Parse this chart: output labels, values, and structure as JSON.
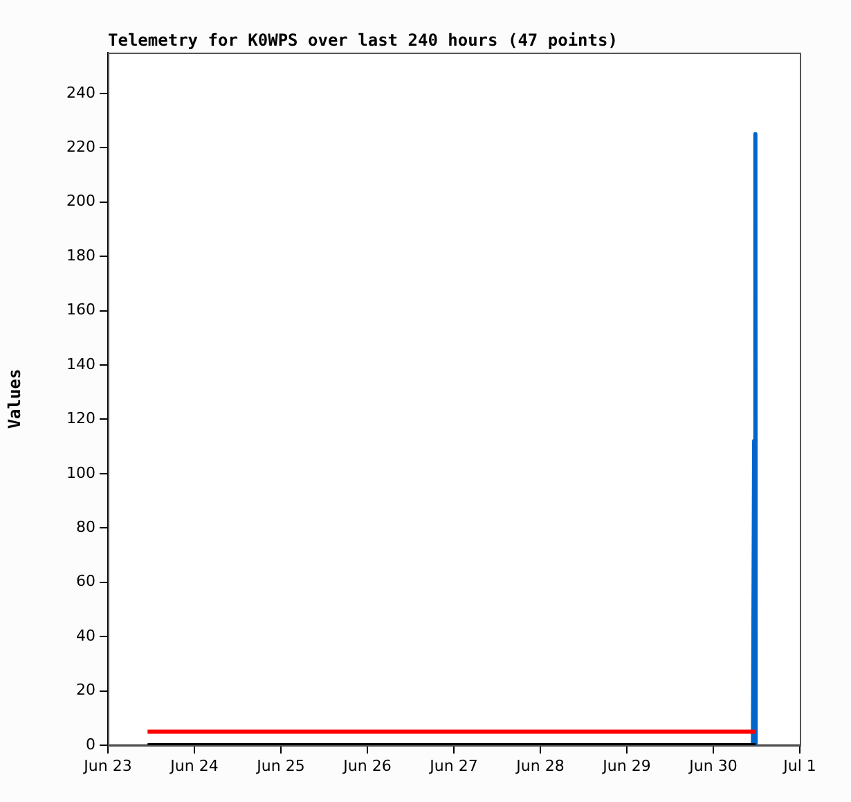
{
  "chart_data": {
    "type": "line",
    "title": "Telemetry for K0WPS over last 240 hours (47 points)",
    "ylabel": "Values",
    "xlim": [
      "--06-23",
      "--07-01"
    ],
    "xticks": [
      {
        "value": "--06-23",
        "label": "Jun 23"
      },
      {
        "value": "--06-24",
        "label": "Jun 24"
      },
      {
        "value": "--06-25",
        "label": "Jun 25"
      },
      {
        "value": "--06-26",
        "label": "Jun 26"
      },
      {
        "value": "--06-27",
        "label": "Jun 27"
      },
      {
        "value": "--06-28",
        "label": "Jun 28"
      },
      {
        "value": "--06-29",
        "label": "Jun 29"
      },
      {
        "value": "--06-30",
        "label": "Jun 30"
      },
      {
        "value": "--07-01",
        "label": "Jul 1"
      }
    ],
    "ylim": [
      0,
      255
    ],
    "yticks": [
      0,
      20,
      40,
      60,
      80,
      100,
      120,
      140,
      160,
      180,
      200,
      220,
      240
    ],
    "series": [
      {
        "color": "#000000",
        "x": [
          "--06-23T11:00",
          "--06-30T11:45"
        ],
        "values": [
          0,
          0
        ]
      },
      {
        "color": "#ff0000",
        "x": [
          "--06-23T11:00",
          "--06-30T11:45"
        ],
        "values": [
          5,
          5
        ]
      },
      {
        "color": "#0066cc",
        "x": [
          "--06-30T11:00",
          "--06-30T11:20",
          "--06-30T11:40",
          "--06-30T11:45"
        ],
        "values": [
          0,
          112,
          225,
          0
        ]
      }
    ],
    "grid": false,
    "legend": false,
    "marker": "none",
    "line_style": "solid"
  }
}
